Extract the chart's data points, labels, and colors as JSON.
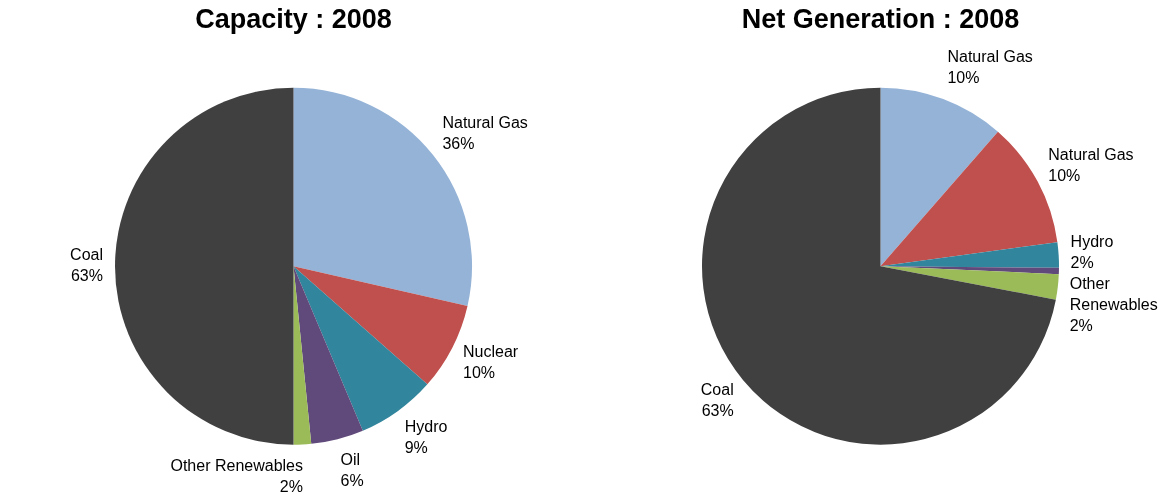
{
  "chart_data": [
    {
      "type": "pie",
      "title": "Capacity : 2008",
      "categories": [
        "Natural Gas",
        "Nuclear",
        "Hydro",
        "Oil",
        "Other Renewables",
        "Coal"
      ],
      "values": [
        36,
        10,
        9,
        6,
        2,
        63
      ],
      "value_labels": [
        "36%",
        "10%",
        "9%",
        "6%",
        "2%",
        "63%"
      ],
      "colors": [
        "#95b3d7",
        "#c0504d",
        "#31859c",
        "#604a7b",
        "#9bbb59",
        "#404040"
      ]
    },
    {
      "type": "pie",
      "title": "Net Generation : 2008",
      "categories": [
        "Natural Gas",
        "Natural Gas",
        "Hydro",
        null,
        "Other Renewables",
        "Coal"
      ],
      "values": [
        10,
        10,
        2,
        0.5,
        2,
        63
      ],
      "value_labels": [
        "10%",
        "10%",
        "2%",
        null,
        "2%",
        "63%"
      ],
      "colors": [
        "#95b3d7",
        "#c0504d",
        "#31859c",
        "#604a7b",
        "#9bbb59",
        "#404040"
      ]
    }
  ]
}
